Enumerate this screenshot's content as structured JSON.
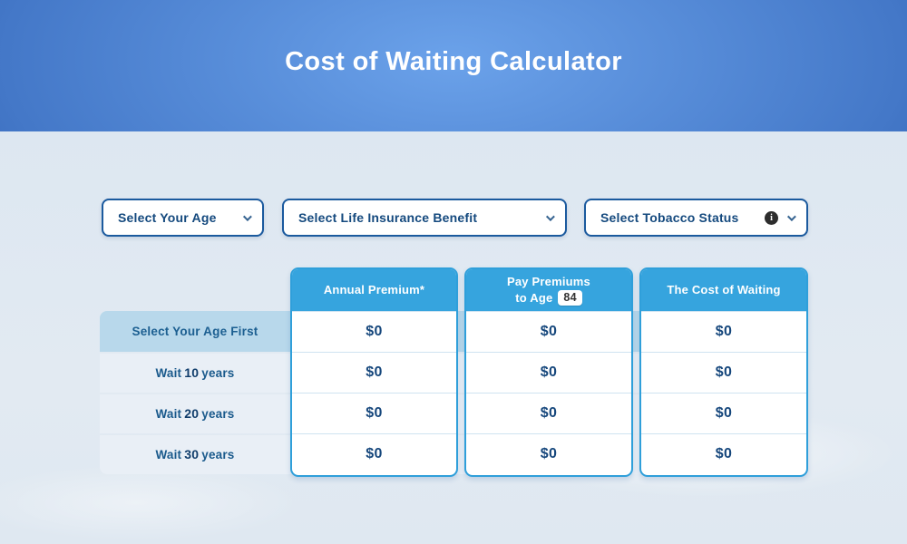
{
  "page": {
    "title": "Cost of Waiting Calculator"
  },
  "filters": {
    "age": {
      "label": "Select Your Age"
    },
    "benefit": {
      "label": "Select Life Insurance Benefit"
    },
    "tobacco": {
      "label": "Select Tobacco Status",
      "info_glyph": "i"
    }
  },
  "table": {
    "columns": {
      "premium": {
        "title": "Annual Premium*"
      },
      "pay_to_age": {
        "line1": "Pay Premiums",
        "line2": "to Age",
        "age": "84"
      },
      "cost": {
        "title": "The Cost of Waiting"
      }
    },
    "rows": [
      {
        "label": "Select Your Age First",
        "values": [
          "$0",
          "$0",
          "$0"
        ]
      },
      {
        "prefix": "Wait",
        "number": "10",
        "suffix": "years",
        "values": [
          "$0",
          "$0",
          "$0"
        ]
      },
      {
        "prefix": "Wait",
        "number": "20",
        "suffix": "years",
        "values": [
          "$0",
          "$0",
          "$0"
        ]
      },
      {
        "prefix": "Wait",
        "number": "30",
        "suffix": "years",
        "values": [
          "$0",
          "$0",
          "$0"
        ]
      }
    ]
  },
  "colors": {
    "banner_center": "#6ba2ea",
    "banner_edge": "#1b4a9c",
    "accent_blue": "#36a4de",
    "column_border": "#2f9fda",
    "dropdown_border": "#1b5a9e",
    "text_navy": "#14497e",
    "row_highlight": "#b8d8eb",
    "row_light": "#e9eff6",
    "page_background": "#e0e9f2"
  }
}
